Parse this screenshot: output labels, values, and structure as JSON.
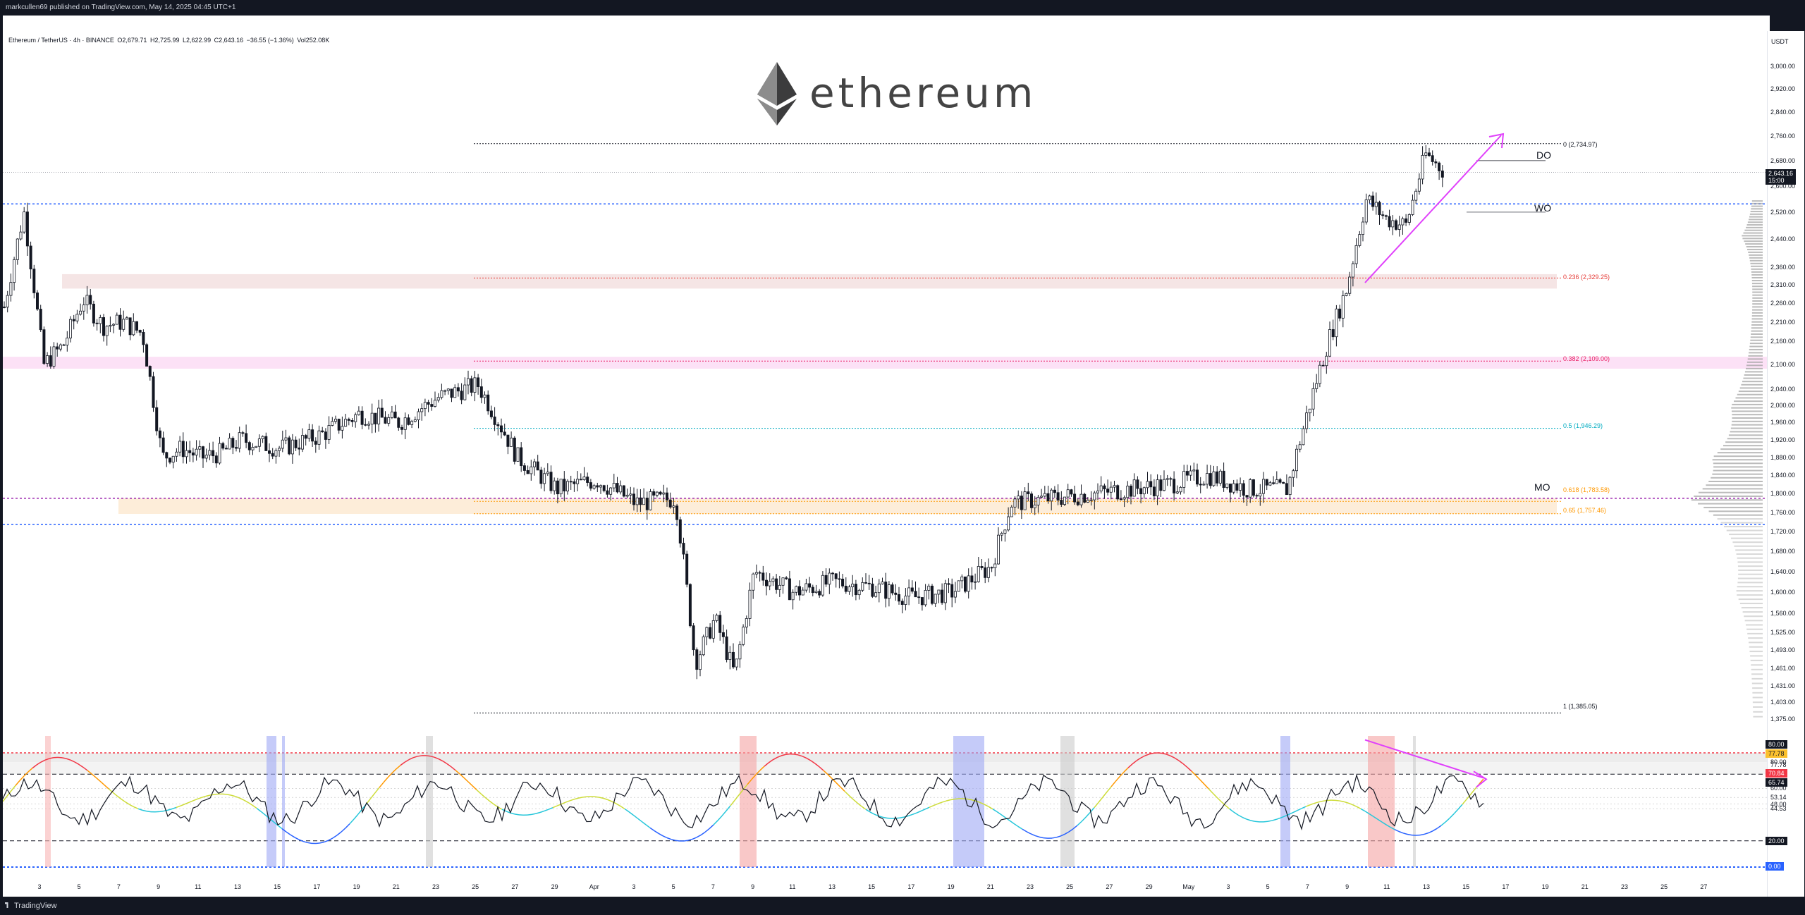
{
  "topbar": {
    "text": "markcullen69 published on TradingView.com, May 14, 2025 04:45 UTC+1"
  },
  "legend": {
    "symbol": "Ethereum / TetherUS · 4h · BINANCE",
    "open": "O2,679.71",
    "high": "H2,725.99",
    "low": "L2,622.99",
    "close": "C2,643.16",
    "change": "−36.55 (−1.36%)",
    "volume": "Vol252.08K"
  },
  "logo": {
    "wordmark": "ethereum",
    "icon": "ethereum-diamond-icon"
  },
  "price_axis": {
    "unit": "USDT",
    "ticks": [
      "3,000.00",
      "2,920.00",
      "2,840.00",
      "2,760.00",
      "2,680.00",
      "2,600.00",
      "2,520.00",
      "2,440.00",
      "2,360.00",
      "2,310.00",
      "2,260.00",
      "2,210.00",
      "2,160.00",
      "2,100.00",
      "2,040.00",
      "2,000.00",
      "1,960.00",
      "1,920.00",
      "1,880.00",
      "1,840.00",
      "1,800.00",
      "1,760.00",
      "1,720.00",
      "1,680.00",
      "1,640.00",
      "1,600.00",
      "1,560.00",
      "1,525.00",
      "1,493.00",
      "1,461.00",
      "1,431.00",
      "1,403.00",
      "1,375.00"
    ],
    "last_price": "2,643.16",
    "countdown": "15:00"
  },
  "indicator_axis": {
    "ticks": [
      "87.13",
      "80.00",
      "77.78",
      "70.84",
      "65.74",
      "60.00",
      "53.14",
      "48.00",
      "44.53",
      "20.00",
      "0.00"
    ],
    "badges": {
      "upper": "80.00",
      "yellow": "77.78",
      "red": "70.84",
      "current": "65.74",
      "lower": "20.00",
      "zero": "0.00"
    }
  },
  "time_axis": {
    "ticks": [
      "3",
      "5",
      "7",
      "9",
      "11",
      "13",
      "15",
      "17",
      "19",
      "21",
      "23",
      "25",
      "27",
      "29",
      "Apr",
      "3",
      "5",
      "7",
      "9",
      "11",
      "13",
      "15",
      "17",
      "19",
      "21",
      "23",
      "25",
      "27",
      "29",
      "May",
      "3",
      "5",
      "7",
      "9",
      "11",
      "13",
      "15",
      "17",
      "19",
      "21",
      "23",
      "25",
      "27"
    ]
  },
  "levels": {
    "fib_0": "0 (2,734.97)",
    "fib_236": "0.236 (2,329.25)",
    "fib_382": "0.382 (2,109.00)",
    "fib_5": "0.5 (1,946.29)",
    "fib_618": "0.618 (1,783.58)",
    "fib_65": "0.65 (1,757.46)",
    "fib_1": "1 (1,385.05)",
    "do": "DO",
    "wo": "WO",
    "mo": "MO"
  },
  "colors": {
    "bull": "#131722",
    "bear": "#131722",
    "arrow": "#e040fb",
    "fib_236": "#e53935",
    "fib_382": "#e91e63",
    "fib_5": "#00acc1",
    "fib_65": "#ff9800",
    "blue_level": "#2962ff",
    "purple_level": "#9c27b0"
  },
  "chart_data": {
    "type": "candlestick",
    "symbol": "ETHUSDT",
    "timeframe": "4h",
    "ylim": [
      1375,
      3000
    ],
    "close_path": [
      [
        "Mar 2",
        2250
      ],
      [
        "Mar 3",
        2520
      ],
      [
        "Mar 4",
        2100
      ],
      [
        "Mar 5",
        2150
      ],
      [
        "Mar 6",
        2270
      ],
      [
        "Mar 7",
        2200
      ],
      [
        "Mar 8",
        2210
      ],
      [
        "Mar 9",
        2180
      ],
      [
        "Mar 10",
        1880
      ],
      [
        "Mar 11",
        1900
      ],
      [
        "Mar 12",
        1880
      ],
      [
        "Mar 13",
        1890
      ],
      [
        "Mar 14",
        1920
      ],
      [
        "Mar 16",
        1900
      ],
      [
        "Mar 18",
        1930
      ],
      [
        "Mar 20",
        1980
      ],
      [
        "Mar 22",
        1960
      ],
      [
        "Mar 24",
        2020
      ],
      [
        "Mar 26",
        2050
      ],
      [
        "Mar 28",
        1880
      ],
      [
        "Mar 30",
        1810
      ],
      [
        "Apr 1",
        1830
      ],
      [
        "Apr 3",
        1780
      ],
      [
        "Apr 5",
        1790
      ],
      [
        "Apr 6",
        1470
      ],
      [
        "Apr 7",
        1550
      ],
      [
        "Apr 8",
        1450
      ],
      [
        "Apr 9",
        1640
      ],
      [
        "Apr 11",
        1600
      ],
      [
        "Apr 13",
        1620
      ],
      [
        "Apr 15",
        1610
      ],
      [
        "Apr 17",
        1590
      ],
      [
        "Apr 19",
        1600
      ],
      [
        "Apr 21",
        1650
      ],
      [
        "Apr 22",
        1780
      ],
      [
        "Apr 24",
        1790
      ],
      [
        "Apr 26",
        1800
      ],
      [
        "Apr 28",
        1810
      ],
      [
        "Apr 30",
        1820
      ],
      [
        "May 2",
        1840
      ],
      [
        "May 4",
        1810
      ],
      [
        "May 6",
        1810
      ],
      [
        "May 8",
        2150
      ],
      [
        "May 9",
        2300
      ],
      [
        "May 10",
        2560
      ],
      [
        "May 11",
        2500
      ],
      [
        "May 12",
        2480
      ],
      [
        "May 13",
        2700
      ],
      [
        "May 14",
        2643.16
      ]
    ],
    "levels": [
      {
        "name": "0",
        "value": 2734.97
      },
      {
        "name": "0.236",
        "value": 2329.25
      },
      {
        "name": "0.382",
        "value": 2109.0
      },
      {
        "name": "0.5",
        "value": 1946.29
      },
      {
        "name": "0.618",
        "value": 1783.58
      },
      {
        "name": "0.65",
        "value": 1757.46
      },
      {
        "name": "1",
        "value": 1385.05
      }
    ],
    "indicator": {
      "upper": 80,
      "lower": 20,
      "current": 65.74
    }
  }
}
